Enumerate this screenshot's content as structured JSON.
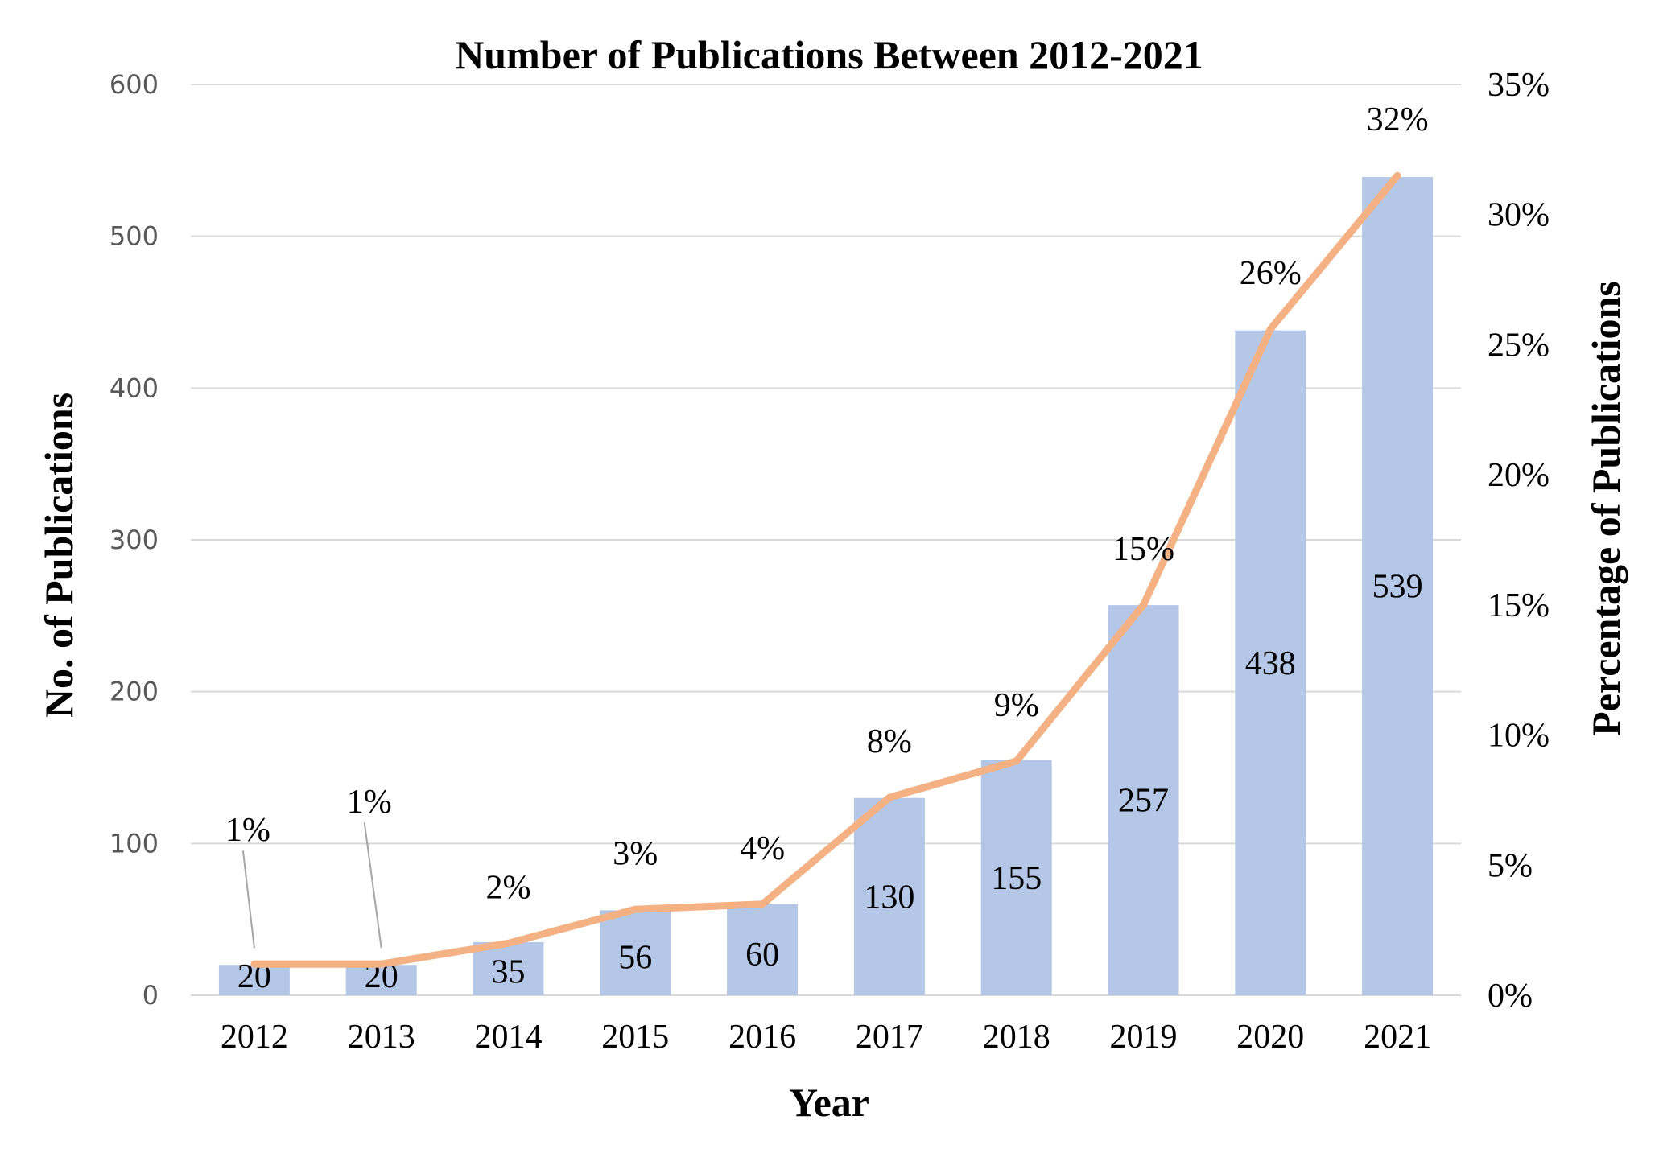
{
  "chart_data": {
    "type": "bar",
    "title": "Number of Publications Between 2012-2021",
    "xlabel": "Year",
    "ylabel": "No. of Publications",
    "y2label": "Percentage of Publications",
    "categories": [
      "2012",
      "2013",
      "2014",
      "2015",
      "2016",
      "2017",
      "2018",
      "2019",
      "2020",
      "2021"
    ],
    "series": [
      {
        "type": "bar",
        "axis": "left",
        "values": [
          20,
          20,
          35,
          56,
          60,
          130,
          155,
          257,
          438,
          539
        ],
        "labels": [
          "20",
          "20",
          "35",
          "56",
          "60",
          "130",
          "155",
          "257",
          "438",
          "539"
        ],
        "color": "#b4c7e7"
      },
      {
        "type": "line",
        "axis": "right",
        "values": [
          1.2,
          1.2,
          2.0,
          3.3,
          3.5,
          7.6,
          9.0,
          15.0,
          25.6,
          31.5
        ],
        "labels": [
          "1%",
          "1%",
          "2%",
          "3%",
          "4%",
          "8%",
          "9%",
          "15%",
          "26%",
          "32%"
        ],
        "color": "#f4b183"
      }
    ],
    "ylim": [
      0,
      600
    ],
    "yticks": [
      "0",
      "100",
      "200",
      "300",
      "400",
      "500",
      "600"
    ],
    "y2lim": [
      0,
      35
    ],
    "y2ticks": [
      "0%",
      "5%",
      "10%",
      "15%",
      "20%",
      "25%",
      "30%",
      "35%"
    ],
    "grid": true,
    "legend": "none"
  }
}
